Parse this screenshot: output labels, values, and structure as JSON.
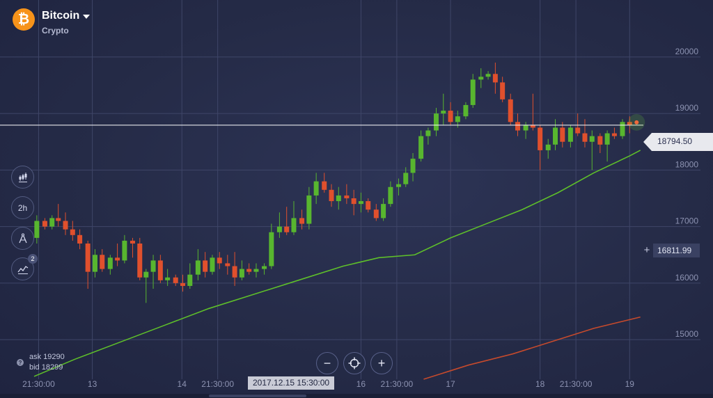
{
  "asset": {
    "symbol_glyph": "₿",
    "name": "Bitcoin",
    "category": "Crypto",
    "icon": "bitcoin-icon",
    "dropdown_icon": "caret-down-icon",
    "brand_color": "#f7931a"
  },
  "toolbar": {
    "tools": [
      {
        "name": "chart-type-tool",
        "icon": "candlestick-chart-icon",
        "label": ""
      },
      {
        "name": "timeframe-tool",
        "icon": "",
        "label": "2h"
      },
      {
        "name": "drawing-tool",
        "icon": "drawing-compass-icon",
        "label": ""
      },
      {
        "name": "indicators-tool",
        "icon": "indicator-wave-icon",
        "label": "",
        "badge": "2"
      }
    ]
  },
  "quote": {
    "ask_text": "ask 19290",
    "bid_text": "bid 18299"
  },
  "current_price": "18794.50",
  "indicator_value": "16811.99",
  "crosshair_time": "2017.12.15 15:30:00",
  "zoom": {
    "minus": "−",
    "center": "crosshair-icon",
    "plus": "+"
  },
  "chart_data": {
    "type": "candlestick",
    "timeframe": "2h",
    "y_axis": {
      "ticks": [
        15000,
        16000,
        17000,
        18000,
        19000,
        20000
      ],
      "range": [
        14300,
        20700
      ]
    },
    "x_axis": {
      "labels": [
        {
          "label": "21:30:00",
          "day": 12.4
        },
        {
          "label": "13",
          "day": 13.0
        },
        {
          "label": "14",
          "day": 14.0
        },
        {
          "label": "21:30:00",
          "day": 14.4
        },
        {
          "label": "16",
          "day": 16.0
        },
        {
          "label": "21:30:00",
          "day": 16.4
        },
        {
          "label": "17",
          "day": 17.0
        },
        {
          "label": "18",
          "day": 18.0
        },
        {
          "label": "21:30:00",
          "day": 18.4
        },
        {
          "label": "19",
          "day": 19.0
        }
      ],
      "range": [
        12.28,
        19.2
      ]
    },
    "colors": {
      "up": "#58b62f",
      "down": "#e0502d",
      "ma_fast": "#5ebf2a",
      "ma_slow": "#c64a2c",
      "grid": "#3f4668"
    },
    "candles": [
      [
        12.38,
        16800,
        17200,
        16700,
        17100
      ],
      [
        12.47,
        17100,
        17150,
        16950,
        17000
      ],
      [
        12.55,
        17000,
        17200,
        16950,
        17150
      ],
      [
        12.62,
        17150,
        17400,
        17000,
        17100
      ],
      [
        12.7,
        17100,
        17250,
        16850,
        16950
      ],
      [
        12.78,
        16950,
        17100,
        16750,
        16850
      ],
      [
        12.86,
        16850,
        16950,
        16600,
        16700
      ],
      [
        12.95,
        16700,
        16750,
        15900,
        16200
      ],
      [
        13.03,
        16200,
        16600,
        16100,
        16500
      ],
      [
        13.11,
        16500,
        16600,
        16200,
        16250
      ],
      [
        13.2,
        16250,
        16500,
        16150,
        16450
      ],
      [
        13.28,
        16450,
        16700,
        16300,
        16400
      ],
      [
        13.36,
        16400,
        16850,
        16350,
        16750
      ],
      [
        13.45,
        16750,
        16800,
        16450,
        16700
      ],
      [
        13.53,
        16700,
        16800,
        16050,
        16100
      ],
      [
        13.6,
        16100,
        16250,
        15650,
        16200
      ],
      [
        13.68,
        16200,
        16500,
        15900,
        16400
      ],
      [
        13.76,
        16400,
        16500,
        16000,
        16050
      ],
      [
        13.84,
        16050,
        16250,
        15950,
        16100
      ],
      [
        13.93,
        16100,
        16150,
        15950,
        16000
      ],
      [
        14.01,
        16000,
        16150,
        15850,
        15950
      ],
      [
        14.09,
        15950,
        16350,
        15900,
        16150
      ],
      [
        14.18,
        16150,
        16600,
        16050,
        16400
      ],
      [
        14.26,
        16400,
        16550,
        16100,
        16200
      ],
      [
        14.34,
        16200,
        16500,
        16150,
        16450
      ],
      [
        14.42,
        16450,
        16550,
        16250,
        16350
      ],
      [
        14.51,
        16350,
        16500,
        16150,
        16300
      ],
      [
        14.59,
        16300,
        16550,
        15950,
        16100
      ],
      [
        14.67,
        16100,
        16400,
        16050,
        16250
      ],
      [
        14.75,
        16250,
        16350,
        16150,
        16200
      ],
      [
        14.83,
        16200,
        16350,
        16100,
        16250
      ],
      [
        14.92,
        16250,
        16350,
        16150,
        16300
      ],
      [
        15.0,
        16300,
        17050,
        16250,
        16900
      ],
      [
        15.09,
        16900,
        17250,
        16800,
        17000
      ],
      [
        15.17,
        17000,
        17350,
        16850,
        16900
      ],
      [
        15.25,
        16900,
        17450,
        16850,
        17150
      ],
      [
        15.34,
        17150,
        17300,
        16950,
        17050
      ],
      [
        15.42,
        17050,
        17700,
        16950,
        17550
      ],
      [
        15.5,
        17550,
        17950,
        17400,
        17800
      ],
      [
        15.59,
        17800,
        17950,
        17600,
        17650
      ],
      [
        15.67,
        17650,
        17750,
        17350,
        17450
      ],
      [
        15.75,
        17450,
        17700,
        17300,
        17550
      ],
      [
        15.84,
        17550,
        17750,
        17400,
        17500
      ],
      [
        15.92,
        17500,
        17650,
        17200,
        17400
      ],
      [
        16.0,
        17400,
        17600,
        17250,
        17450
      ],
      [
        16.08,
        17450,
        17500,
        17250,
        17300
      ],
      [
        16.17,
        17300,
        17400,
        17100,
        17150
      ],
      [
        16.25,
        17150,
        17500,
        17100,
        17400
      ],
      [
        16.33,
        17400,
        17800,
        17350,
        17700
      ],
      [
        16.42,
        17700,
        17850,
        17550,
        17750
      ],
      [
        16.5,
        17750,
        18050,
        17700,
        17950
      ],
      [
        16.58,
        17950,
        18300,
        17800,
        18200
      ],
      [
        16.67,
        18200,
        18700,
        18150,
        18600
      ],
      [
        16.75,
        18600,
        18750,
        18450,
        18700
      ],
      [
        16.84,
        18700,
        19100,
        18600,
        19000
      ],
      [
        16.92,
        19000,
        19350,
        18800,
        19050
      ],
      [
        17.0,
        19050,
        19200,
        18800,
        18850
      ],
      [
        17.08,
        18850,
        19050,
        18750,
        18950
      ],
      [
        17.17,
        18950,
        19200,
        18900,
        19150
      ],
      [
        17.25,
        19150,
        19700,
        19100,
        19600
      ],
      [
        17.34,
        19600,
        19800,
        19450,
        19650
      ],
      [
        17.42,
        19650,
        19750,
        19600,
        19700
      ],
      [
        17.5,
        19700,
        19900,
        19350,
        19550
      ],
      [
        17.58,
        19550,
        19650,
        19200,
        19250
      ],
      [
        17.67,
        19250,
        19350,
        18800,
        18850
      ],
      [
        17.75,
        18850,
        19000,
        18600,
        18700
      ],
      [
        17.84,
        18700,
        18850,
        18550,
        18800
      ],
      [
        17.92,
        18800,
        19350,
        18700,
        18750
      ],
      [
        18.0,
        18750,
        18800,
        18000,
        18350
      ],
      [
        18.09,
        18350,
        18550,
        18200,
        18450
      ],
      [
        18.17,
        18450,
        18900,
        18350,
        18750
      ],
      [
        18.25,
        18750,
        18850,
        18400,
        18500
      ],
      [
        18.34,
        18500,
        18800,
        18400,
        18750
      ],
      [
        18.42,
        18750,
        19000,
        18600,
        18650
      ],
      [
        18.5,
        18650,
        18900,
        18400,
        18500
      ],
      [
        18.58,
        18500,
        18700,
        18000,
        18600
      ],
      [
        18.67,
        18600,
        18650,
        18300,
        18450
      ],
      [
        18.75,
        18450,
        18700,
        18150,
        18650
      ],
      [
        18.83,
        18650,
        18750,
        18550,
        18600
      ],
      [
        18.92,
        18600,
        18900,
        18550,
        18850
      ],
      [
        19.0,
        18850,
        18950,
        18650,
        18800
      ]
    ],
    "ma_fast": [
      [
        12.35,
        14350
      ],
      [
        12.8,
        14650
      ],
      [
        13.3,
        14950
      ],
      [
        13.8,
        15250
      ],
      [
        14.3,
        15550
      ],
      [
        14.8,
        15800
      ],
      [
        15.3,
        16050
      ],
      [
        15.8,
        16300
      ],
      [
        16.2,
        16450
      ],
      [
        16.6,
        16500
      ],
      [
        17.0,
        16800
      ],
      [
        17.4,
        17050
      ],
      [
        17.8,
        17300
      ],
      [
        18.2,
        17600
      ],
      [
        18.6,
        17950
      ],
      [
        19.0,
        18250
      ],
      [
        19.12,
        18350
      ]
    ],
    "ma_slow": [
      [
        16.7,
        14300
      ],
      [
        17.2,
        14550
      ],
      [
        17.7,
        14750
      ],
      [
        18.2,
        15000
      ],
      [
        18.6,
        15200
      ],
      [
        19.12,
        15400
      ]
    ],
    "price_line": 18794.5,
    "indicator_line": 16811.99
  }
}
